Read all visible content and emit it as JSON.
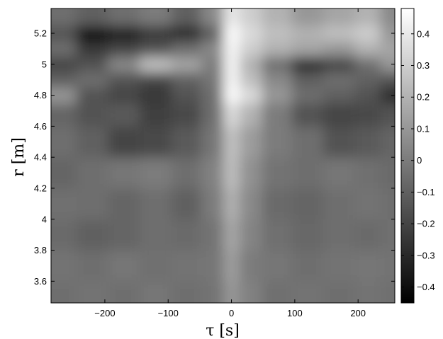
{
  "chart_data": {
    "type": "heatmap",
    "title": "",
    "xlabel": "τ [s]",
    "ylabel": "r [m]",
    "xlim": [
      -285,
      258
    ],
    "ylim": [
      3.46,
      5.36
    ],
    "x_ticks": [
      -200,
      -100,
      0,
      100,
      200
    ],
    "y_ticks": [
      3.6,
      3.8,
      4,
      4.2,
      4.4,
      4.6,
      4.8,
      5,
      5.2
    ],
    "x_tick_labels": [
      "−200",
      "−100",
      "0",
      "100",
      "200"
    ],
    "y_tick_labels": [
      "3.6",
      "3.8",
      "4",
      "4.2",
      "4.4",
      "4.6",
      "4.8",
      "5",
      "5.2"
    ],
    "colorbar": {
      "min": -0.45,
      "max": 0.48,
      "ticks": [
        0.4,
        0.3,
        0.2,
        0.1,
        0,
        -0.1,
        -0.2,
        -0.3,
        -0.4
      ],
      "tick_labels": [
        "0.4",
        "0.3",
        "0.2",
        "0.1",
        "0",
        "−0.1",
        "−0.2",
        "−0.3",
        "−0.4"
      ],
      "colormap": "gray"
    },
    "x": [
      -270,
      -220,
      -170,
      -120,
      -70,
      -25,
      0,
      25,
      70,
      120,
      170,
      220,
      250
    ],
    "y": [
      3.5,
      3.7,
      3.9,
      4.1,
      4.3,
      4.5,
      4.7,
      4.8,
      4.9,
      5.0,
      5.1,
      5.2,
      5.3
    ],
    "z": [
      [
        -0.05,
        -0.03,
        -0.05,
        -0.02,
        -0.05,
        -0.03,
        0.1,
        0.02,
        -0.04,
        -0.03,
        -0.05,
        -0.03,
        -0.04
      ],
      [
        -0.03,
        -0.05,
        -0.02,
        -0.04,
        -0.03,
        -0.02,
        0.13,
        0.0,
        -0.02,
        -0.05,
        -0.03,
        -0.02,
        -0.03
      ],
      [
        -0.06,
        -0.1,
        -0.08,
        -0.05,
        -0.06,
        -0.03,
        0.16,
        0.03,
        -0.04,
        -0.07,
        -0.05,
        -0.06,
        -0.04
      ],
      [
        -0.04,
        -0.05,
        -0.08,
        -0.05,
        -0.1,
        0.0,
        0.2,
        0.05,
        -0.06,
        -0.08,
        -0.05,
        -0.03,
        -0.05
      ],
      [
        -0.08,
        -0.05,
        -0.02,
        0.0,
        -0.05,
        0.02,
        0.25,
        0.08,
        -0.03,
        -0.05,
        -0.02,
        -0.04,
        -0.06
      ],
      [
        -0.05,
        -0.1,
        -0.2,
        -0.18,
        -0.12,
        -0.02,
        0.26,
        0.12,
        0.0,
        -0.05,
        -0.15,
        -0.12,
        -0.08
      ],
      [
        -0.08,
        -0.15,
        -0.12,
        -0.22,
        -0.18,
        -0.05,
        0.35,
        0.2,
        0.0,
        -0.15,
        -0.2,
        -0.18,
        -0.15
      ],
      [
        0.1,
        -0.15,
        -0.2,
        -0.25,
        -0.15,
        -0.05,
        0.48,
        0.35,
        0.1,
        -0.05,
        -0.1,
        -0.15,
        -0.3
      ],
      [
        -0.1,
        -0.05,
        -0.15,
        -0.2,
        -0.1,
        -0.02,
        0.45,
        0.25,
        0.05,
        -0.1,
        -0.05,
        -0.1,
        -0.15
      ],
      [
        -0.2,
        -0.15,
        0.05,
        0.25,
        0.15,
        0.0,
        0.45,
        0.2,
        -0.05,
        -0.3,
        -0.2,
        -0.05,
        0.1
      ],
      [
        -0.05,
        -0.25,
        -0.2,
        -0.15,
        -0.05,
        0.05,
        0.45,
        0.3,
        0.2,
        0.15,
        0.1,
        0.2,
        0.15
      ],
      [
        -0.15,
        -0.4,
        -0.35,
        -0.25,
        -0.3,
        -0.1,
        0.48,
        0.35,
        0.25,
        0.2,
        0.25,
        0.3,
        0.1
      ],
      [
        -0.05,
        -0.1,
        -0.05,
        0.0,
        -0.1,
        0.05,
        0.4,
        0.3,
        0.2,
        0.1,
        0.15,
        0.2,
        0.05
      ]
    ]
  }
}
